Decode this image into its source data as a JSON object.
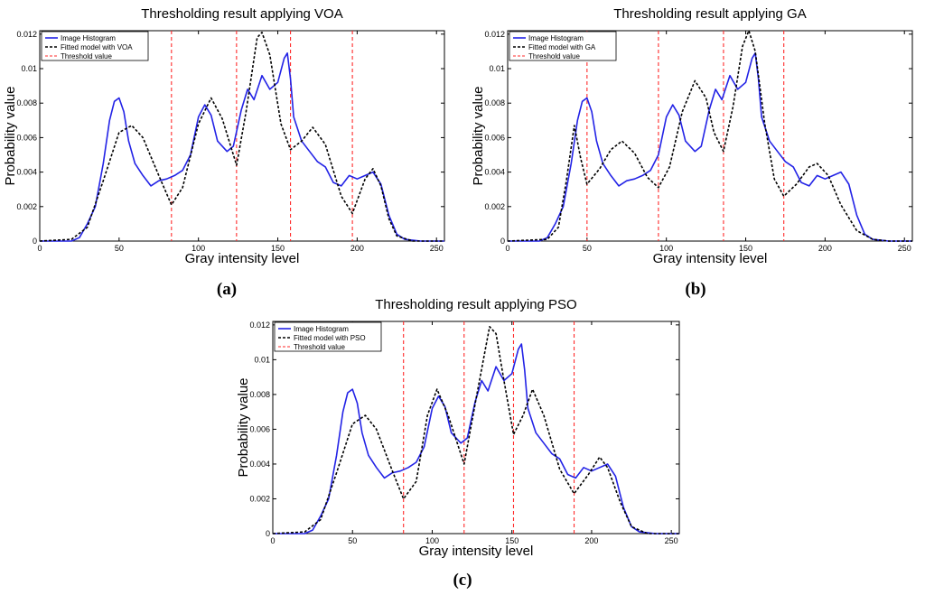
{
  "chart_data": [
    {
      "id": "a",
      "panel_label": "(a)",
      "type": "line",
      "title": "Thresholding result applying VOA",
      "xlabel": "Gray intensity level",
      "ylabel": "Probability value",
      "xlim": [
        0,
        255
      ],
      "ylim": [
        0,
        0.0122
      ],
      "xticks": [
        0,
        50,
        100,
        150,
        200,
        250
      ],
      "yticks": [
        0,
        0.002,
        0.004,
        0.006,
        0.008,
        0.01,
        0.012
      ],
      "ytick_labels": [
        "0",
        "0.002",
        "0.004",
        "0.006",
        "0.008",
        "0.01",
        "0.012"
      ],
      "legend": [
        "Image Histogram",
        "Fitted model with VOA",
        "Threshold value"
      ],
      "legend_position": "top-left",
      "thresholds": [
        83,
        124,
        158,
        197
      ],
      "histogram": [
        [
          0,
          0
        ],
        [
          20,
          0
        ],
        [
          25,
          0.0002
        ],
        [
          30,
          0.001
        ],
        [
          35,
          0.002
        ],
        [
          40,
          0.0045
        ],
        [
          44,
          0.007
        ],
        [
          47,
          0.0081
        ],
        [
          50,
          0.0083
        ],
        [
          53,
          0.0075
        ],
        [
          56,
          0.0058
        ],
        [
          60,
          0.0045
        ],
        [
          65,
          0.0038
        ],
        [
          70,
          0.0032
        ],
        [
          75,
          0.0035
        ],
        [
          80,
          0.0036
        ],
        [
          85,
          0.0038
        ],
        [
          90,
          0.0041
        ],
        [
          95,
          0.005
        ],
        [
          100,
          0.0072
        ],
        [
          104,
          0.0079
        ],
        [
          108,
          0.0073
        ],
        [
          112,
          0.0058
        ],
        [
          118,
          0.0052
        ],
        [
          122,
          0.0055
        ],
        [
          127,
          0.0076
        ],
        [
          131,
          0.0088
        ],
        [
          135,
          0.0082
        ],
        [
          140,
          0.0096
        ],
        [
          145,
          0.0088
        ],
        [
          150,
          0.0092
        ],
        [
          154,
          0.0106
        ],
        [
          156,
          0.0109
        ],
        [
          158,
          0.0094
        ],
        [
          160,
          0.0072
        ],
        [
          165,
          0.0058
        ],
        [
          170,
          0.0052
        ],
        [
          175,
          0.0046
        ],
        [
          180,
          0.0043
        ],
        [
          185,
          0.0034
        ],
        [
          190,
          0.0032
        ],
        [
          195,
          0.0038
        ],
        [
          200,
          0.0036
        ],
        [
          205,
          0.0038
        ],
        [
          210,
          0.004
        ],
        [
          215,
          0.0033
        ],
        [
          220,
          0.0015
        ],
        [
          225,
          0.0004
        ],
        [
          230,
          0.0001
        ],
        [
          240,
          0
        ],
        [
          255,
          0
        ]
      ],
      "fitted": [
        [
          0,
          0
        ],
        [
          20,
          0.0001
        ],
        [
          30,
          0.0008
        ],
        [
          40,
          0.0035
        ],
        [
          50,
          0.0063
        ],
        [
          58,
          0.0067
        ],
        [
          65,
          0.006
        ],
        [
          75,
          0.0038
        ],
        [
          83,
          0.0021
        ],
        [
          90,
          0.0031
        ],
        [
          100,
          0.0068
        ],
        [
          108,
          0.0083
        ],
        [
          115,
          0.0071
        ],
        [
          124,
          0.0044
        ],
        [
          130,
          0.0075
        ],
        [
          137,
          0.0118
        ],
        [
          140,
          0.0121
        ],
        [
          145,
          0.0108
        ],
        [
          152,
          0.0068
        ],
        [
          158,
          0.0053
        ],
        [
          165,
          0.0058
        ],
        [
          172,
          0.0066
        ],
        [
          180,
          0.0056
        ],
        [
          190,
          0.0026
        ],
        [
          197,
          0.0016
        ],
        [
          205,
          0.0036
        ],
        [
          210,
          0.0042
        ],
        [
          215,
          0.0032
        ],
        [
          220,
          0.0013
        ],
        [
          225,
          0.0003
        ],
        [
          235,
          0
        ],
        [
          255,
          0
        ]
      ]
    },
    {
      "id": "b",
      "panel_label": "(b)",
      "type": "line",
      "title": "Thresholding result applying GA",
      "xlabel": "Gray intensity level",
      "ylabel": "Probability value",
      "xlim": [
        0,
        255
      ],
      "ylim": [
        0,
        0.0122
      ],
      "xticks": [
        0,
        50,
        100,
        150,
        200,
        250
      ],
      "yticks": [
        0,
        0.002,
        0.004,
        0.006,
        0.008,
        0.01,
        0.012
      ],
      "ytick_labels": [
        "0",
        "0.002",
        "0.004",
        "0.006",
        "0.008",
        "0.01",
        "0.012"
      ],
      "legend": [
        "Image Histogram",
        "Fitted model with GA",
        "Threshold value"
      ],
      "legend_position": "top-left",
      "thresholds": [
        50,
        95,
        136,
        174
      ],
      "histogram": [
        [
          0,
          0
        ],
        [
          20,
          0
        ],
        [
          25,
          0.0002
        ],
        [
          30,
          0.001
        ],
        [
          35,
          0.002
        ],
        [
          40,
          0.0045
        ],
        [
          44,
          0.007
        ],
        [
          47,
          0.0081
        ],
        [
          50,
          0.0083
        ],
        [
          53,
          0.0075
        ],
        [
          56,
          0.0058
        ],
        [
          60,
          0.0045
        ],
        [
          65,
          0.0038
        ],
        [
          70,
          0.0032
        ],
        [
          75,
          0.0035
        ],
        [
          80,
          0.0036
        ],
        [
          85,
          0.0038
        ],
        [
          90,
          0.0041
        ],
        [
          95,
          0.005
        ],
        [
          100,
          0.0072
        ],
        [
          104,
          0.0079
        ],
        [
          108,
          0.0073
        ],
        [
          112,
          0.0058
        ],
        [
          118,
          0.0052
        ],
        [
          122,
          0.0055
        ],
        [
          127,
          0.0076
        ],
        [
          131,
          0.0088
        ],
        [
          135,
          0.0082
        ],
        [
          140,
          0.0096
        ],
        [
          145,
          0.0088
        ],
        [
          150,
          0.0092
        ],
        [
          154,
          0.0106
        ],
        [
          156,
          0.0109
        ],
        [
          158,
          0.0094
        ],
        [
          160,
          0.0072
        ],
        [
          165,
          0.0058
        ],
        [
          170,
          0.0052
        ],
        [
          175,
          0.0046
        ],
        [
          180,
          0.0043
        ],
        [
          185,
          0.0034
        ],
        [
          190,
          0.0032
        ],
        [
          195,
          0.0038
        ],
        [
          200,
          0.0036
        ],
        [
          205,
          0.0038
        ],
        [
          210,
          0.004
        ],
        [
          215,
          0.0033
        ],
        [
          220,
          0.0015
        ],
        [
          225,
          0.0004
        ],
        [
          230,
          0.0001
        ],
        [
          240,
          0
        ],
        [
          255,
          0
        ]
      ],
      "fitted": [
        [
          0,
          0
        ],
        [
          25,
          0.0001
        ],
        [
          32,
          0.0008
        ],
        [
          37,
          0.0035
        ],
        [
          42,
          0.0067
        ],
        [
          46,
          0.0048
        ],
        [
          50,
          0.0033
        ],
        [
          58,
          0.0042
        ],
        [
          65,
          0.0053
        ],
        [
          72,
          0.0058
        ],
        [
          80,
          0.0051
        ],
        [
          88,
          0.0037
        ],
        [
          95,
          0.0031
        ],
        [
          102,
          0.0043
        ],
        [
          110,
          0.0075
        ],
        [
          118,
          0.0093
        ],
        [
          125,
          0.0083
        ],
        [
          130,
          0.0063
        ],
        [
          136,
          0.0052
        ],
        [
          142,
          0.0078
        ],
        [
          148,
          0.0113
        ],
        [
          152,
          0.0122
        ],
        [
          156,
          0.011
        ],
        [
          162,
          0.0068
        ],
        [
          168,
          0.0036
        ],
        [
          174,
          0.0026
        ],
        [
          182,
          0.0033
        ],
        [
          190,
          0.0043
        ],
        [
          195,
          0.0045
        ],
        [
          202,
          0.0038
        ],
        [
          210,
          0.0021
        ],
        [
          220,
          0.0006
        ],
        [
          230,
          0.0001
        ],
        [
          240,
          0
        ],
        [
          255,
          0
        ]
      ]
    },
    {
      "id": "c",
      "panel_label": "(c)",
      "type": "line",
      "title": "Thresholding result applying PSO",
      "xlabel": "Gray intensity level",
      "ylabel": "Probability value",
      "xlim": [
        0,
        255
      ],
      "ylim": [
        0,
        0.0122
      ],
      "xticks": [
        0,
        50,
        100,
        150,
        200,
        250
      ],
      "yticks": [
        0,
        0.002,
        0.004,
        0.006,
        0.008,
        0.01,
        0.012
      ],
      "ytick_labels": [
        "0",
        "0.002",
        "0.004",
        "0.006",
        "0.008",
        "0.01",
        "0.012"
      ],
      "legend": [
        "Image Histogram",
        "Fitted model with PSO",
        "Threshold value"
      ],
      "legend_position": "top-left",
      "thresholds": [
        82,
        120,
        151,
        189
      ],
      "histogram": [
        [
          0,
          0
        ],
        [
          20,
          0
        ],
        [
          25,
          0.0002
        ],
        [
          30,
          0.001
        ],
        [
          35,
          0.002
        ],
        [
          40,
          0.0045
        ],
        [
          44,
          0.007
        ],
        [
          47,
          0.0081
        ],
        [
          50,
          0.0083
        ],
        [
          53,
          0.0075
        ],
        [
          56,
          0.0058
        ],
        [
          60,
          0.0045
        ],
        [
          65,
          0.0038
        ],
        [
          70,
          0.0032
        ],
        [
          75,
          0.0035
        ],
        [
          80,
          0.0036
        ],
        [
          85,
          0.0038
        ],
        [
          90,
          0.0041
        ],
        [
          95,
          0.005
        ],
        [
          100,
          0.0072
        ],
        [
          104,
          0.0079
        ],
        [
          108,
          0.0073
        ],
        [
          112,
          0.0058
        ],
        [
          118,
          0.0052
        ],
        [
          122,
          0.0055
        ],
        [
          127,
          0.0076
        ],
        [
          131,
          0.0088
        ],
        [
          135,
          0.0082
        ],
        [
          140,
          0.0096
        ],
        [
          145,
          0.0088
        ],
        [
          150,
          0.0092
        ],
        [
          154,
          0.0106
        ],
        [
          156,
          0.0109
        ],
        [
          158,
          0.0094
        ],
        [
          160,
          0.0072
        ],
        [
          165,
          0.0058
        ],
        [
          170,
          0.0052
        ],
        [
          175,
          0.0046
        ],
        [
          180,
          0.0043
        ],
        [
          185,
          0.0034
        ],
        [
          190,
          0.0032
        ],
        [
          195,
          0.0038
        ],
        [
          200,
          0.0036
        ],
        [
          205,
          0.0038
        ],
        [
          210,
          0.004
        ],
        [
          215,
          0.0033
        ],
        [
          220,
          0.0015
        ],
        [
          225,
          0.0004
        ],
        [
          230,
          0.0001
        ],
        [
          240,
          0
        ],
        [
          255,
          0
        ]
      ],
      "fitted": [
        [
          0,
          0
        ],
        [
          20,
          0.0001
        ],
        [
          30,
          0.0008
        ],
        [
          40,
          0.0035
        ],
        [
          50,
          0.0063
        ],
        [
          58,
          0.0068
        ],
        [
          65,
          0.006
        ],
        [
          75,
          0.0036
        ],
        [
          82,
          0.002
        ],
        [
          90,
          0.003
        ],
        [
          97,
          0.0068
        ],
        [
          103,
          0.0083
        ],
        [
          110,
          0.0068
        ],
        [
          120,
          0.004
        ],
        [
          128,
          0.008
        ],
        [
          136,
          0.0119
        ],
        [
          140,
          0.0115
        ],
        [
          145,
          0.0088
        ],
        [
          151,
          0.0057
        ],
        [
          157,
          0.0068
        ],
        [
          163,
          0.0083
        ],
        [
          170,
          0.0068
        ],
        [
          180,
          0.0037
        ],
        [
          189,
          0.0023
        ],
        [
          198,
          0.0034
        ],
        [
          205,
          0.0044
        ],
        [
          210,
          0.0038
        ],
        [
          218,
          0.0018
        ],
        [
          225,
          0.0004
        ],
        [
          235,
          0
        ],
        [
          255,
          0
        ]
      ]
    }
  ]
}
